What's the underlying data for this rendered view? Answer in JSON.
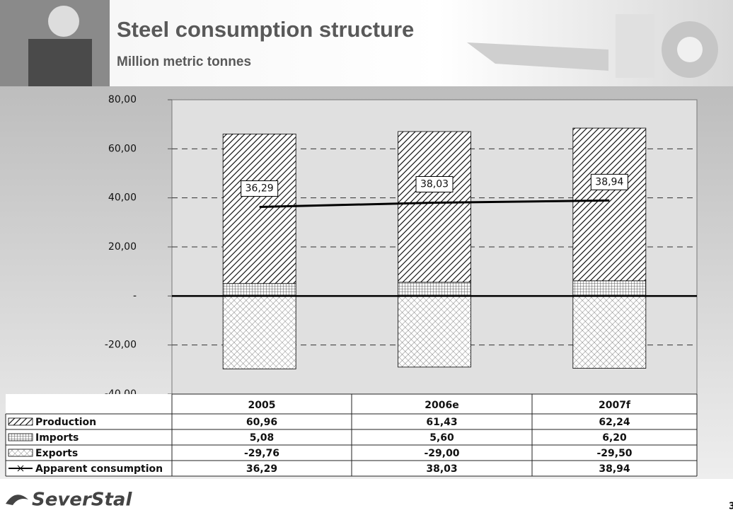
{
  "chart_data": {
    "type": "bar",
    "title": "Steel consumption structure",
    "subtitle": "Million metric tonnes",
    "categories": [
      "2005",
      "2006e",
      "2007f"
    ],
    "series": [
      {
        "name": "Production",
        "color": "#000000",
        "values": [
          60.96,
          61.43,
          62.24
        ],
        "value_labels": [
          "60,96",
          "61,43",
          "62,24"
        ]
      },
      {
        "name": "Imports",
        "color": "#000000",
        "values": [
          5.08,
          5.6,
          6.2
        ],
        "value_labels": [
          "5,08",
          "5,60",
          "6,20"
        ]
      },
      {
        "name": "Exports",
        "color": "#000000",
        "values": [
          -29.76,
          -29.0,
          -29.5
        ],
        "value_labels": [
          "-29,76",
          "-29,00",
          "-29,50"
        ]
      },
      {
        "name": "Apparent consumption",
        "type": "line",
        "color": "#000000",
        "values": [
          36.29,
          38.03,
          38.94
        ],
        "value_labels": [
          "36,29",
          "38,03",
          "38,94"
        ]
      }
    ],
    "ylim": [
      -40,
      80
    ],
    "yticks": [
      {
        "value": -40,
        "label": "-40,00"
      },
      {
        "value": -20,
        "label": "-20,00"
      },
      {
        "value": 0,
        "label": "-"
      },
      {
        "value": 20,
        "label": "20,00"
      },
      {
        "value": 40,
        "label": "40,00"
      },
      {
        "value": 60,
        "label": "60,00"
      },
      {
        "value": 80,
        "label": "80,00"
      }
    ],
    "grid": true
  },
  "logo": "SeverStal",
  "page_number": "3"
}
